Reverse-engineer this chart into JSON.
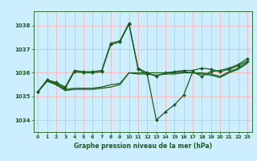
{
  "background_color": "#cceeff",
  "grid_color": "#ffaaaa",
  "line_color": "#1a5c1a",
  "title": "Graphe pression niveau de la mer (hPa)",
  "xlim": [
    -0.5,
    23.5
  ],
  "ylim": [
    1033.5,
    1038.6
  ],
  "yticks": [
    1034,
    1035,
    1036,
    1037,
    1038
  ],
  "xticks": [
    0,
    1,
    2,
    3,
    4,
    5,
    6,
    7,
    8,
    9,
    10,
    11,
    12,
    13,
    14,
    15,
    16,
    17,
    18,
    19,
    20,
    21,
    22,
    23
  ],
  "series": [
    {
      "y": [
        1035.2,
        1035.7,
        1035.6,
        1035.4,
        1036.1,
        1036.05,
        1036.05,
        1036.1,
        1037.25,
        1037.35,
        1038.1,
        1036.2,
        1036.0,
        1035.85,
        1036.0,
        1036.05,
        1036.1,
        1036.1,
        1036.2,
        1036.15,
        1036.05,
        1036.15,
        1036.3,
        1036.5
      ],
      "marker": true,
      "linewidth": 0.9
    },
    {
      "y": [
        1035.2,
        1035.7,
        1035.55,
        1035.35,
        1036.05,
        1036.0,
        1036.0,
        1036.05,
        1037.2,
        1037.3,
        1038.05,
        1036.15,
        1035.95,
        1034.0,
        1034.35,
        1034.65,
        1035.05,
        1036.05,
        1035.85,
        1036.05,
        1036.1,
        1036.2,
        1036.35,
        1036.6
      ],
      "marker": true,
      "linewidth": 0.9
    },
    {
      "y": [
        1035.2,
        1035.65,
        1035.5,
        1035.3,
        1035.35,
        1035.35,
        1035.35,
        1035.4,
        1035.5,
        1035.55,
        1036.0,
        1036.0,
        1036.0,
        1036.0,
        1036.0,
        1036.0,
        1036.05,
        1036.0,
        1036.0,
        1035.95,
        1035.85,
        1036.05,
        1036.2,
        1036.45
      ],
      "marker": false,
      "linewidth": 0.9
    },
    {
      "y": [
        1035.2,
        1035.65,
        1035.5,
        1035.25,
        1035.3,
        1035.3,
        1035.3,
        1035.35,
        1035.4,
        1035.5,
        1036.0,
        1035.95,
        1035.95,
        1035.9,
        1035.95,
        1035.95,
        1036.0,
        1036.0,
        1035.95,
        1035.9,
        1035.8,
        1036.0,
        1036.15,
        1036.4
      ],
      "marker": false,
      "linewidth": 0.9
    }
  ]
}
